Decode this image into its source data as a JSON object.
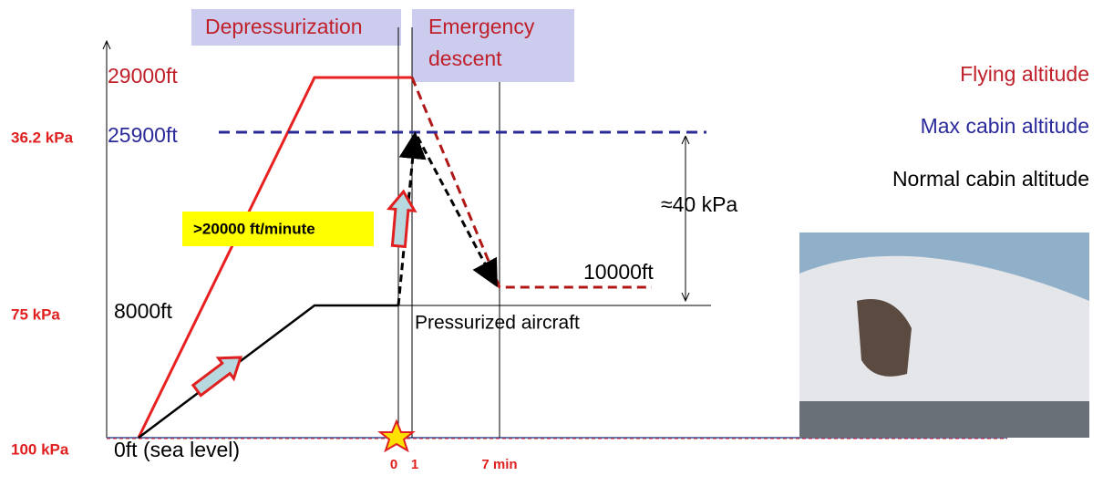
{
  "phases": {
    "depressurization": "Depressurization",
    "emergency_descent": [
      "Emergency",
      "descent"
    ]
  },
  "altitudes": {
    "flying": "29000ft",
    "max_cabin": "25900ft",
    "normal_cabin": "8000ft",
    "descent_target": "10000ft",
    "sea_level": "0ft (sea level)"
  },
  "pressures": {
    "max_cabin": "36.2 kPa",
    "normal_cabin": "75 kPa",
    "sea_level": "100 kPa"
  },
  "legend": {
    "flying": "Flying altitude",
    "max_cabin": "Max cabin altitude",
    "normal_cabin": "Normal cabin altitude"
  },
  "annotations": {
    "pressure_difference": "≈40 kPa",
    "rate": ">20000 ft/minute",
    "pressurized": "Pressurized aircraft"
  },
  "time_labels": {
    "start": "0",
    "one": "1",
    "seven": "7 min"
  }
}
